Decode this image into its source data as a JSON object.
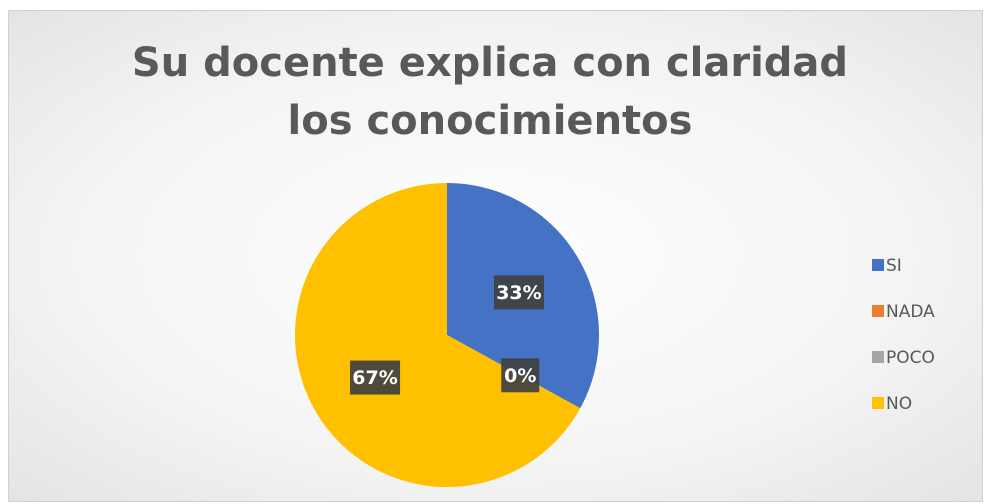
{
  "chart_data": {
    "type": "pie",
    "title": "Su docente explica con claridad los conocimientos",
    "categories": [
      "SI",
      "NADA",
      "POCO",
      "NO"
    ],
    "values": [
      33,
      0,
      0,
      67
    ],
    "value_labels": [
      "33%",
      "0%",
      null,
      "67%"
    ],
    "colors": [
      "#4472c4",
      "#ed7d31",
      "#a5a5a5",
      "#ffc000"
    ],
    "legend": "right"
  }
}
